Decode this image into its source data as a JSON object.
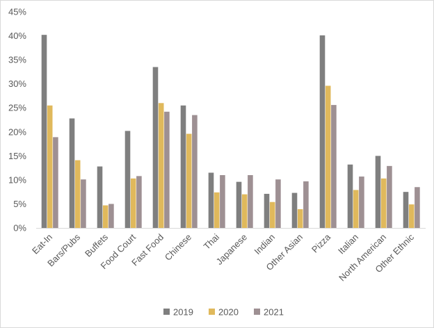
{
  "chart_data": {
    "type": "bar",
    "title": "",
    "xlabel": "",
    "ylabel": "",
    "categories": [
      "Eat-In",
      "Bars/Pubs",
      "Buffets",
      "Food Court",
      "Fast Food",
      "Chinese",
      "Thai",
      "Japanese",
      "Indian",
      "Other Asian",
      "Pizza",
      "Italian",
      "North American",
      "Other Ethnic"
    ],
    "series": [
      {
        "name": "2019",
        "color": "#7f7f7f",
        "values": [
          40.2,
          22.8,
          12.8,
          20.2,
          33.5,
          25.5,
          11.5,
          9.6,
          7.1,
          7.3,
          40.1,
          13.2,
          15.0,
          7.5
        ]
      },
      {
        "name": "2020",
        "color": "#e0b95c",
        "values": [
          25.5,
          14.1,
          4.7,
          10.3,
          26.0,
          19.6,
          7.4,
          7.0,
          5.4,
          3.9,
          29.6,
          7.9,
          10.3,
          4.9
        ]
      },
      {
        "name": "2021",
        "color": "#9e9093",
        "values": [
          18.9,
          10.1,
          5.0,
          10.8,
          24.2,
          23.5,
          11.0,
          11.0,
          10.1,
          9.7,
          25.6,
          10.7,
          12.9,
          8.5
        ]
      }
    ],
    "yticks": [
      "0%",
      "5%",
      "10%",
      "15%",
      "20%",
      "25%",
      "30%",
      "35%",
      "40%",
      "45%"
    ],
    "ylim": [
      0,
      45
    ],
    "grid": false,
    "legend": "bottom"
  }
}
